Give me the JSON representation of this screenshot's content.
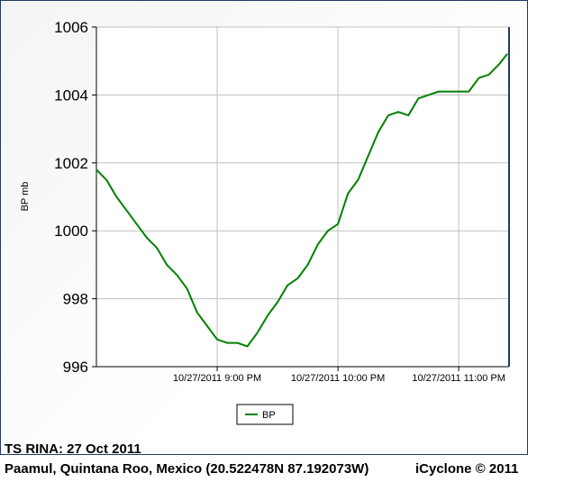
{
  "chart_data": {
    "type": "line",
    "title": "",
    "xlabel": "",
    "ylabel": "BP mb",
    "ylim": [
      996,
      1006
    ],
    "yticks": [
      "996",
      "998",
      "1000",
      "1002",
      "1004",
      "1006"
    ],
    "xlim": [
      "2011-10-27 20:00",
      "2011-10-27 23:25"
    ],
    "xticks": [
      {
        "time": "21:00",
        "label": "10/27/2011 9:00 PM"
      },
      {
        "time": "22:00",
        "label": "10/27/2011 10:00 PM"
      },
      {
        "time": "23:00",
        "label": "10/27/2011 11:00 PM"
      }
    ],
    "grid": true,
    "legend": "bottom-center",
    "series": [
      {
        "name": "BP",
        "color": "#008000",
        "x": [
          "20:00",
          "20:05",
          "20:10",
          "20:15",
          "20:20",
          "20:25",
          "20:30",
          "20:35",
          "20:40",
          "20:45",
          "20:50",
          "20:55",
          "21:00",
          "21:05",
          "21:10",
          "21:15",
          "21:20",
          "21:25",
          "21:30",
          "21:35",
          "21:40",
          "21:45",
          "21:50",
          "21:55",
          "22:00",
          "22:05",
          "22:10",
          "22:15",
          "22:20",
          "22:25",
          "22:30",
          "22:35",
          "22:40",
          "22:45",
          "22:50",
          "22:55",
          "23:00",
          "23:05",
          "23:10",
          "23:15",
          "23:20",
          "23:24"
        ],
        "y": [
          1001.8,
          1001.5,
          1001.0,
          1000.6,
          1000.2,
          999.8,
          999.5,
          999.0,
          998.7,
          998.3,
          997.6,
          997.2,
          996.8,
          996.7,
          996.7,
          996.6,
          997.0,
          997.5,
          997.9,
          998.4,
          998.6,
          999.0,
          999.6,
          1000.0,
          1000.2,
          1001.1,
          1001.5,
          1002.2,
          1002.9,
          1003.4,
          1003.5,
          1003.4,
          1003.9,
          1004.0,
          1004.1,
          1004.1,
          1004.1,
          1004.1,
          1004.5,
          1004.6,
          1004.9,
          1005.2
        ]
      }
    ]
  },
  "footer": {
    "line1": "TS RINA: 27 Oct 2011",
    "location": "Paamul, Quintana Roo, Mexico (20.522478N 87.192073W)",
    "credit": "iCyclone © 2011"
  }
}
